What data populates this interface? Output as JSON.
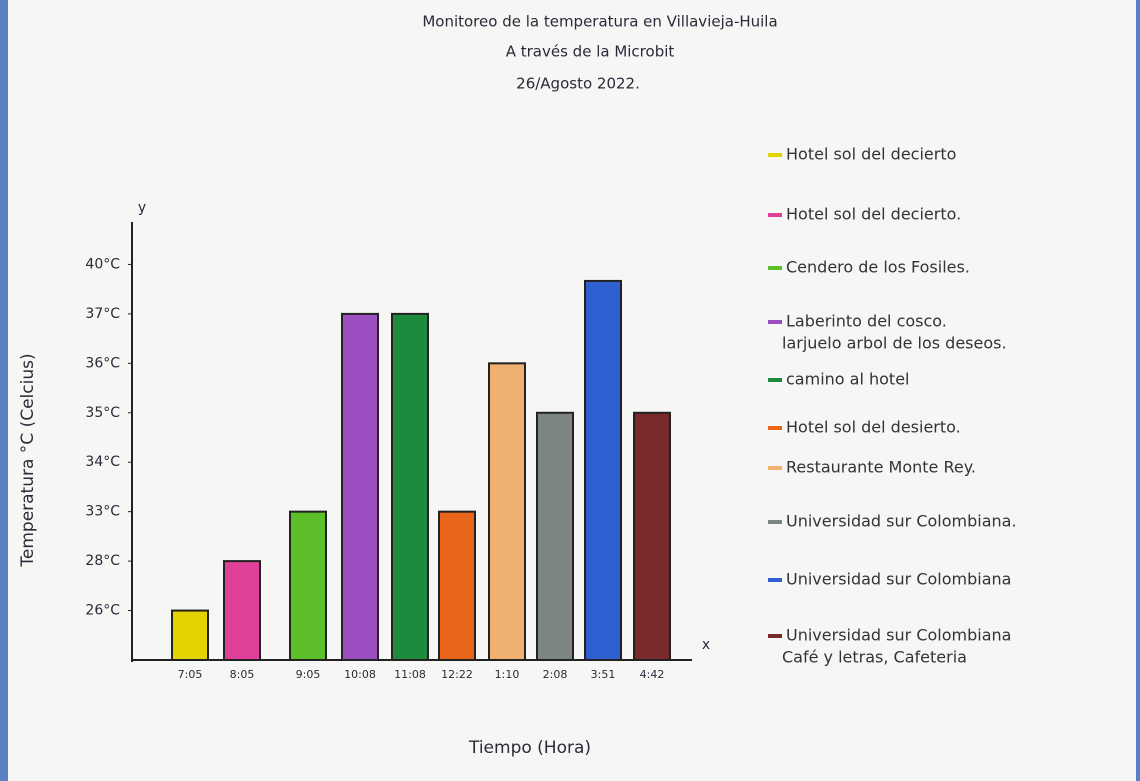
{
  "chart_data": {
    "type": "bar",
    "title": [
      "Monitoreo de la temperatura en Villavieja-Huila",
      "A través de la Microbit",
      "26/Agosto 2022."
    ],
    "y_label": "Temperatura °C (Celcius)",
    "x_label": "Tiempo (Hora)",
    "y_axis_letter": "y",
    "x_axis_letter": "x",
    "categories": [
      "7:05",
      "8:05",
      "9:05",
      "10:08",
      "11:08",
      "12:22",
      "1:10",
      "2:08",
      "3:51",
      "4:42"
    ],
    "values": [
      26,
      28,
      33,
      37,
      37,
      33,
      36,
      35,
      39,
      35
    ],
    "colors": [
      "#e3d400",
      "#e0409a",
      "#5cbf2a",
      "#9b4fc0",
      "#1e8a3e",
      "#e8651a",
      "#f0b070",
      "#7d8580",
      "#2f5fd0",
      "#7a2a2a"
    ],
    "legend": [
      [
        "Hotel sol del decierto"
      ],
      [
        "Hotel sol del decierto."
      ],
      [
        "Cendero de los Fosiles."
      ],
      [
        "Laberinto del cosco.",
        "larjuelo arbol de los deseos."
      ],
      [
        "camino al hotel"
      ],
      [
        "Hotel sol del desierto."
      ],
      [
        "Restaurante Monte Rey."
      ],
      [
        "Universidad sur Colombiana."
      ],
      [
        "Universidad sur Colombiana"
      ],
      [
        "Universidad sur Colombiana",
        "Café y letras, Cafeteria"
      ]
    ],
    "ylim": [
      24,
      41
    ],
    "yticks": [
      {
        "value": 26,
        "label": "26°C"
      },
      {
        "value": 28,
        "label": "28°C"
      },
      {
        "value": 33,
        "label": "33°C"
      },
      {
        "value": 34,
        "label": "34°C"
      },
      {
        "value": 35,
        "label": "35°C"
      },
      {
        "value": 36,
        "label": "36°C"
      },
      {
        "value": 37,
        "label": "37°C"
      },
      {
        "value": 40,
        "label": "40°C"
      }
    ],
    "grid": false
  }
}
